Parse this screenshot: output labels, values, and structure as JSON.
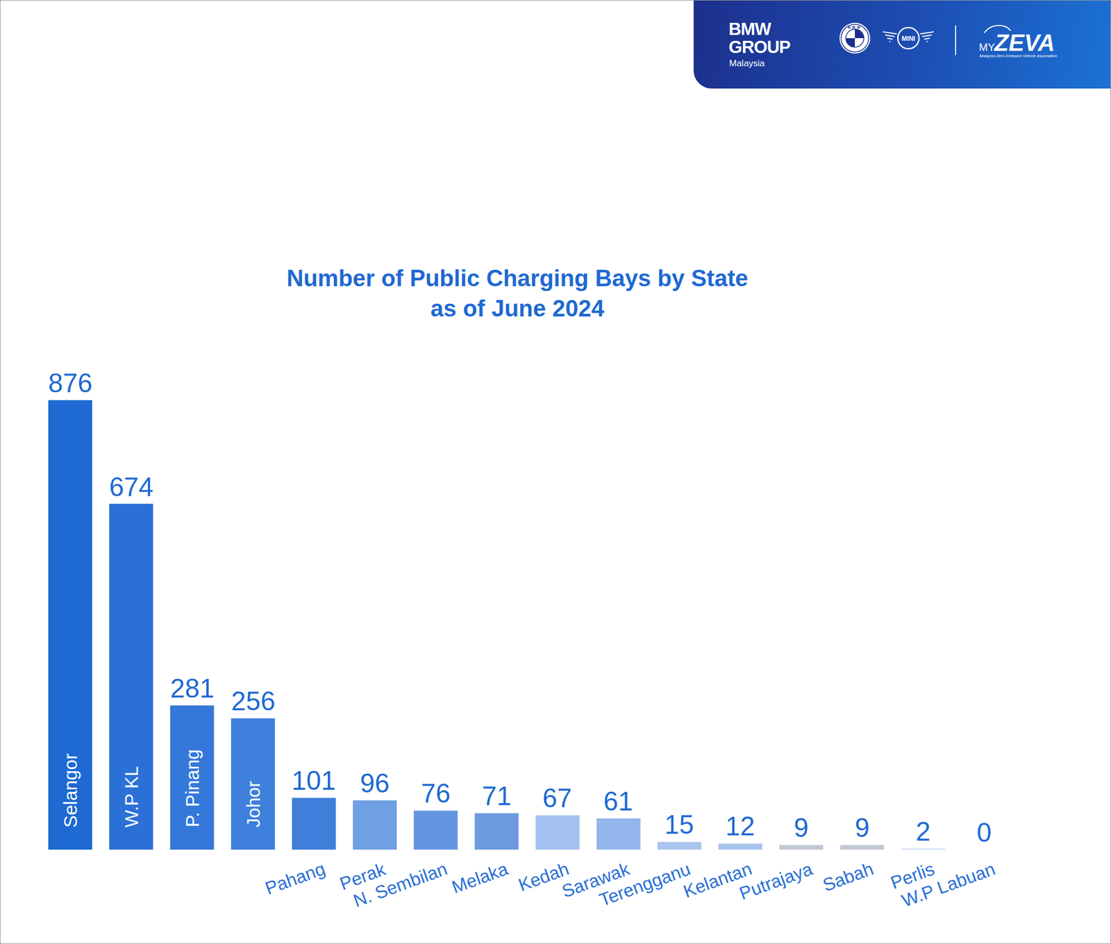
{
  "chart_data": {
    "type": "bar",
    "title": "Number of Public Charging Bays by State\nas of June 2024",
    "categories": [
      "Selangor",
      "W.P KL",
      "P. Pinang",
      "Johor",
      "Pahang",
      "Perak",
      "N. Sembilan",
      "Melaka",
      "Kedah",
      "Sarawak",
      "Terengganu",
      "Kelantan",
      "Putrajaya",
      "Sabah",
      "Perlis",
      "W.P Labuan"
    ],
    "values": [
      876,
      674,
      281,
      256,
      101,
      96,
      76,
      71,
      67,
      61,
      15,
      12,
      9,
      9,
      2,
      0
    ],
    "colors": [
      "#1e69d2",
      "#2a70d6",
      "#3478d9",
      "#3e80dc",
      "#3f7fdb",
      "#6ea0e3",
      "#6495e0",
      "#6e9ae2",
      "#a3c1ef",
      "#94b6ec",
      "#a9c4ee",
      "#a9c4ee",
      "#c0c8d4",
      "#c0c8d4",
      "#c8d8f0",
      "#cccccc"
    ],
    "ylim": [
      0,
      876
    ],
    "yticks": [],
    "grid": false,
    "data_labels": true,
    "tick_labels": false
  },
  "header": {
    "brand": [
      "BMW",
      "GROUP"
    ],
    "region": "Malaysia",
    "roundel": "BMW",
    "mini": "MINI",
    "association": [
      "MY",
      "ZEVA"
    ],
    "tagline": "Malaysia Zero Emission Vehicle Association"
  }
}
